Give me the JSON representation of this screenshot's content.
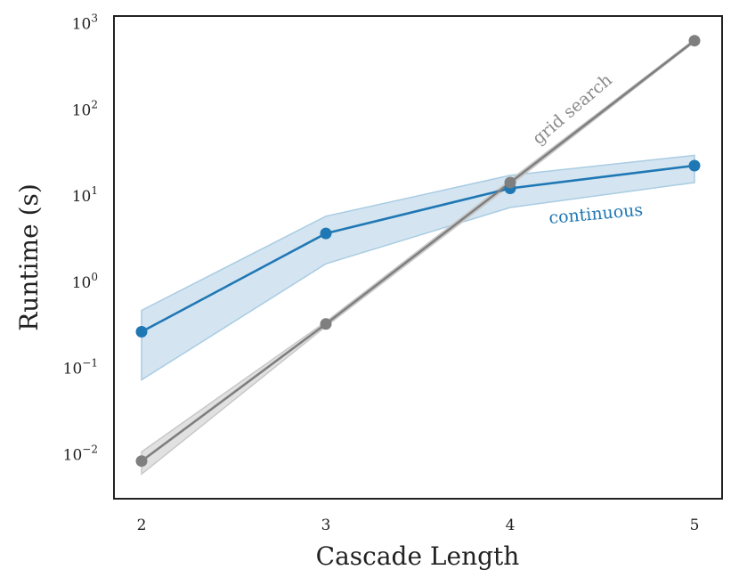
{
  "chart_data": {
    "type": "line",
    "title": "",
    "xlabel": "Cascade Length",
    "ylabel": "Runtime (s)",
    "x": [
      2,
      3,
      4,
      5
    ],
    "xlim": [
      1.85,
      5.15
    ],
    "ylim": [
      0.003,
      1200
    ],
    "yscale": "log",
    "x_ticks": [
      {
        "value": 2,
        "label": "2"
      },
      {
        "value": 3,
        "label": "3"
      },
      {
        "value": 4,
        "label": "4"
      },
      {
        "value": 5,
        "label": "5"
      }
    ],
    "y_ticks": [
      {
        "value": 0.01,
        "base": "10",
        "exp": "−2"
      },
      {
        "value": 0.1,
        "base": "10",
        "exp": "−1"
      },
      {
        "value": 1,
        "base": "10",
        "exp": "0"
      },
      {
        "value": 10,
        "base": "10",
        "exp": "1"
      },
      {
        "value": 100,
        "base": "10",
        "exp": "2"
      },
      {
        "value": 1000,
        "base": "10",
        "exp": "3"
      }
    ],
    "grid": false,
    "legend": "none",
    "series": [
      {
        "name": "continuous",
        "color": "#1f77b4",
        "band_color": "#a9cce3",
        "values": [
          0.26,
          3.6,
          12,
          22
        ],
        "lower": [
          0.072,
          1.6,
          7.2,
          14
        ],
        "upper": [
          0.46,
          5.7,
          17,
          29
        ]
      },
      {
        "name": "grid search",
        "color": "#7f7f7f",
        "band_color": "#c8c8c8",
        "values": [
          0.0082,
          0.32,
          14,
          620
        ],
        "lower": [
          0.0058,
          0.3,
          13,
          600
        ],
        "upper": [
          0.0105,
          0.34,
          15,
          640
        ]
      }
    ]
  }
}
